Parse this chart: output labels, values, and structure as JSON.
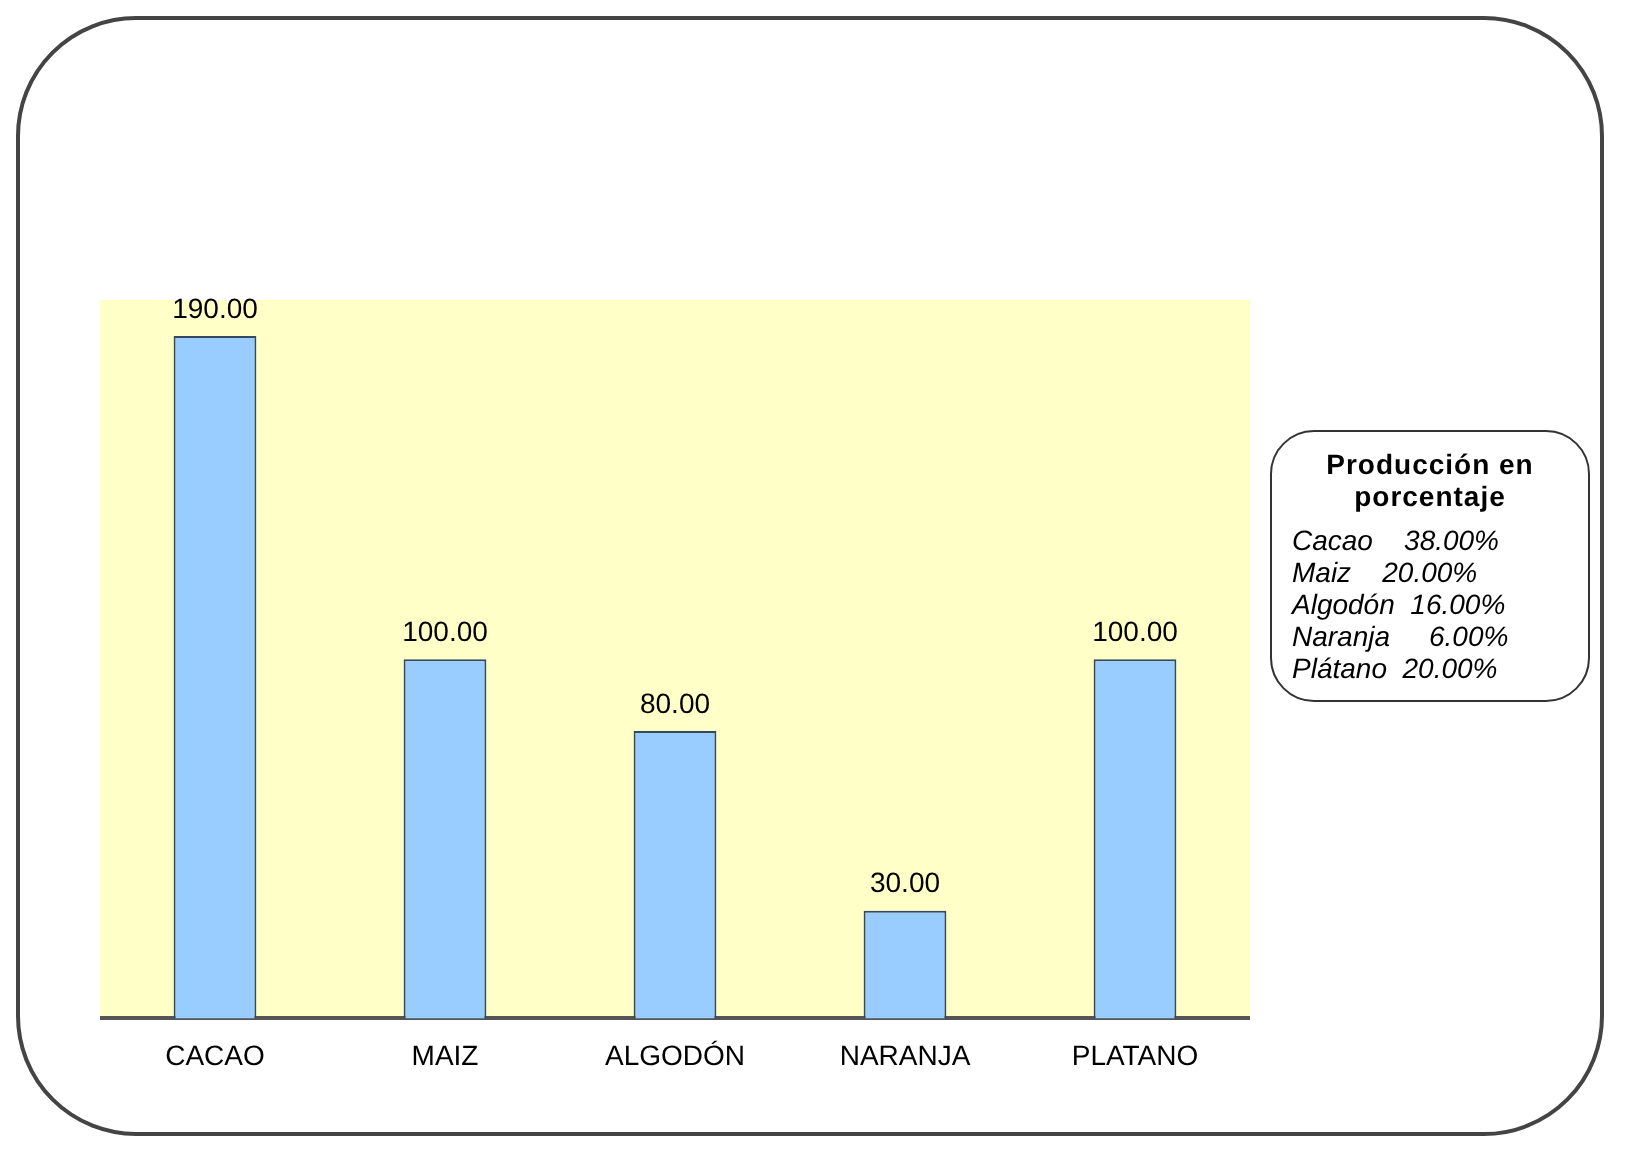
{
  "chart_data": {
    "type": "bar",
    "categories": [
      "CACAO",
      "MAIZ",
      "ALGODÓN",
      "NARANJA",
      "PLATANO"
    ],
    "values": [
      190,
      100,
      80,
      30,
      100
    ],
    "value_labels": [
      "190.00",
      "100.00",
      "80.00",
      "30.00",
      "100.00"
    ],
    "color": "#99ccff",
    "tick_labels": "x",
    "grid": false,
    "legend": false,
    "annotations": [
      "Producción en porcentaje",
      "Cacao    38.00%",
      "Maiz    20.00%",
      "Algodón  16.00%",
      "Naranja     6.00%",
      "Plátano  20.00%"
    ]
  }
}
